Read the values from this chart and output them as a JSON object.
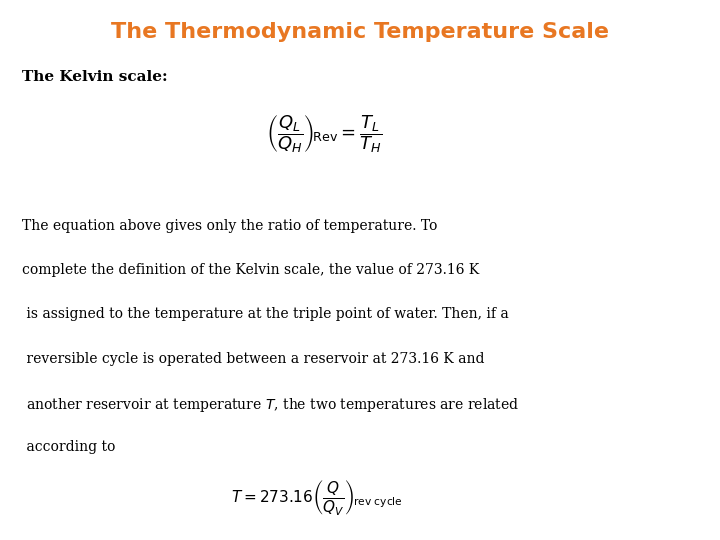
{
  "title": "The Thermodynamic Temperature Scale",
  "title_color": "#E87722",
  "title_fontsize": 16,
  "bg_color": "#ffffff",
  "kelvin_label": "The Kelvin scale:",
  "eq1_latex": "$\\left(\\dfrac{Q_L}{Q_H}\\right)_{\\!\\mathrm{Rev}} = \\dfrac{T_L}{T_H}$",
  "body_text": [
    "The equation above gives only the ratio of temperature. To",
    "complete the definition of the Kelvin scale, the value of 273.16 K",
    " is assigned to the temperature at the triple point of water. Then, if a",
    " reversible cycle is operated between a reservoir at 273.16 K and",
    " another reservoir at temperature $T$, the two temperatures are related",
    " according to"
  ],
  "eq2_latex": "$T = 273.16\\left(\\dfrac{Q}{Q_V}\\right)_{\\!\\mathrm{rev\\ cycle}}$",
  "text_fontsize": 10,
  "kelvin_fontsize": 11,
  "eq1_fontsize": 13,
  "eq2_fontsize": 11
}
